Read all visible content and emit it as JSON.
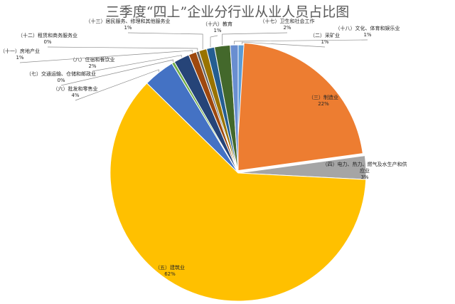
{
  "chart_data": {
    "type": "pie",
    "title": "三季度“四上”企业分行业从业人员占比图",
    "slices": [
      {
        "label": "（二）采矿业",
        "value": 1,
        "text": "1%",
        "color": "#5b9bd5"
      },
      {
        "label": "（三）制造业",
        "value": 22,
        "text": "22%",
        "color": "#ed7d31"
      },
      {
        "label": "（四）电力、热力、燃气及水生产和供应业",
        "value": 3,
        "text": "3%",
        "color": "#a5a5a5"
      },
      {
        "label": "（五）建筑业",
        "value": 62,
        "text": "62%",
        "color": "#ffc000"
      },
      {
        "label": "（六）批发和零售业",
        "value": 4,
        "text": "4%",
        "color": "#4472c4"
      },
      {
        "label": "（七）交通运输、仓储和邮政业",
        "value": 0,
        "text": "0%",
        "color": "#70ad47"
      },
      {
        "label": "（八）住宿和餐饮业",
        "value": 2,
        "text": "2%",
        "color": "#264478"
      },
      {
        "label": "（十一）房地产业",
        "value": 1,
        "text": "1%",
        "color": "#9e480e"
      },
      {
        "label": "（十二）租赁和商务服务业",
        "value": 0,
        "text": "0%",
        "color": "#636363"
      },
      {
        "label": "（十三）居民服务、修理和其他服务业",
        "value": 1,
        "text": "1%",
        "color": "#997300"
      },
      {
        "label": "（十六）教育",
        "value": 1,
        "text": "1%",
        "color": "#255e91"
      },
      {
        "label": "（十七）卫生和社会工作",
        "value": 2,
        "text": "2%",
        "color": "#43682b"
      },
      {
        "label": "（十八）文化、体育和娱乐业",
        "value": 1,
        "text": "1%",
        "color": "#698ed0"
      }
    ]
  }
}
